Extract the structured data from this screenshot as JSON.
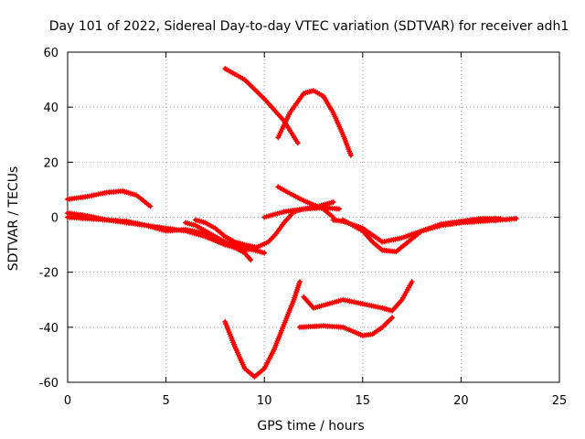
{
  "chart_data": {
    "type": "scatter",
    "title": "Day 101 of 2022, Sidereal Day-to-day VTEC variation (SDTVAR) for receiver adh1",
    "xlabel": "GPS time / hours",
    "ylabel": "SDTVAR / TECUs",
    "xlim": [
      0,
      25
    ],
    "ylim": [
      -60,
      60
    ],
    "x_ticks": [
      "0",
      "5",
      "10",
      "15",
      "20",
      "25"
    ],
    "y_ticks": [
      "-60",
      "-40",
      "-20",
      "0",
      "20",
      "40",
      "60"
    ],
    "grid": true,
    "series_color": "#ff0000",
    "series": [
      {
        "name": "trace-1",
        "points": [
          [
            0,
            6.5
          ],
          [
            1,
            7.5
          ],
          [
            2,
            9
          ],
          [
            2.8,
            9.5
          ],
          [
            3.5,
            8
          ],
          [
            4.2,
            4
          ]
        ]
      },
      {
        "name": "trace-2",
        "points": [
          [
            0,
            1.5
          ],
          [
            1,
            0.5
          ],
          [
            2,
            -1
          ],
          [
            3,
            -2
          ],
          [
            4,
            -3
          ],
          [
            5,
            -5
          ],
          [
            6,
            -4.5
          ],
          [
            7,
            -6
          ],
          [
            8,
            -9
          ],
          [
            9,
            -11
          ],
          [
            10,
            -13
          ]
        ]
      },
      {
        "name": "trace-3",
        "points": [
          [
            0,
            0
          ],
          [
            1,
            -0.5
          ],
          [
            2,
            -1
          ],
          [
            3,
            -1.5
          ],
          [
            4,
            -3
          ],
          [
            5,
            -4
          ],
          [
            6,
            -5
          ],
          [
            7,
            -7
          ],
          [
            8,
            -10
          ],
          [
            9,
            -12
          ],
          [
            9.6,
            -11
          ]
        ]
      },
      {
        "name": "trace-4",
        "points": [
          [
            6,
            -2
          ],
          [
            6.5,
            -3
          ],
          [
            7,
            -5
          ],
          [
            7.5,
            -7
          ],
          [
            8,
            -9
          ],
          [
            8.5,
            -11
          ],
          [
            9,
            -13
          ],
          [
            9.3,
            -15.5
          ]
        ]
      },
      {
        "name": "trace-5",
        "points": [
          [
            6.5,
            -1
          ],
          [
            7,
            -2
          ],
          [
            7.5,
            -4
          ],
          [
            8,
            -7
          ],
          [
            8.5,
            -9
          ],
          [
            9,
            -10
          ],
          [
            9.6,
            -11
          ],
          [
            10.2,
            -9
          ],
          [
            10.6,
            -6
          ],
          [
            11,
            -2
          ],
          [
            11.5,
            2
          ],
          [
            12,
            3
          ],
          [
            12.5,
            3.5
          ],
          [
            13,
            4.5
          ],
          [
            13.5,
            5.5
          ]
        ]
      },
      {
        "name": "trace-6",
        "points": [
          [
            10,
            0
          ],
          [
            11,
            2
          ],
          [
            12,
            3
          ],
          [
            13,
            3.5
          ],
          [
            13.8,
            3
          ]
        ]
      },
      {
        "name": "trace-7",
        "points": [
          [
            10.7,
            11
          ],
          [
            11.2,
            9
          ],
          [
            12,
            6
          ],
          [
            13,
            3
          ],
          [
            13.5,
            0
          ]
        ]
      },
      {
        "name": "trace-8",
        "points": [
          [
            13.5,
            -1
          ],
          [
            14,
            -1.5
          ],
          [
            15,
            -4
          ],
          [
            16,
            -9
          ],
          [
            17,
            -7.5
          ],
          [
            18,
            -5
          ],
          [
            19,
            -3
          ],
          [
            20,
            -2
          ],
          [
            21,
            -1.5
          ],
          [
            22,
            -1
          ],
          [
            22.8,
            -0.5
          ]
        ]
      },
      {
        "name": "trace-9",
        "points": [
          [
            14,
            -1
          ],
          [
            15,
            -5
          ],
          [
            15.5,
            -9
          ],
          [
            16,
            -12
          ],
          [
            16.7,
            -12.5
          ],
          [
            17.3,
            -9
          ],
          [
            18,
            -5
          ],
          [
            19,
            -2.5
          ],
          [
            20,
            -1.5
          ],
          [
            21,
            -0.5
          ],
          [
            22,
            -0.5
          ]
        ]
      },
      {
        "name": "trace-10",
        "points": [
          [
            8,
            54
          ],
          [
            9,
            50
          ],
          [
            10,
            43
          ],
          [
            11,
            35
          ],
          [
            11.7,
            27
          ]
        ]
      },
      {
        "name": "trace-11",
        "points": [
          [
            10.7,
            29
          ],
          [
            11.3,
            38
          ],
          [
            12,
            45
          ],
          [
            12.5,
            46
          ],
          [
            13,
            44
          ],
          [
            13.5,
            38
          ],
          [
            14,
            30
          ],
          [
            14.4,
            22.5
          ]
        ]
      },
      {
        "name": "trace-12",
        "points": [
          [
            8,
            -38
          ],
          [
            8.5,
            -47
          ],
          [
            9,
            -55
          ],
          [
            9.5,
            -58
          ],
          [
            10,
            -55
          ],
          [
            10.5,
            -48
          ],
          [
            11,
            -39
          ],
          [
            11.5,
            -30
          ],
          [
            11.8,
            -23.5
          ]
        ]
      },
      {
        "name": "trace-13",
        "points": [
          [
            12,
            -29
          ],
          [
            12.5,
            -33
          ],
          [
            13,
            -32
          ],
          [
            14,
            -30
          ],
          [
            15,
            -31.5
          ],
          [
            16,
            -33
          ],
          [
            16.5,
            -34
          ],
          [
            17,
            -30
          ],
          [
            17.5,
            -23.5
          ]
        ]
      },
      {
        "name": "trace-14",
        "points": [
          [
            11.8,
            -40
          ],
          [
            13,
            -39.5
          ],
          [
            14,
            -40
          ],
          [
            15,
            -43
          ],
          [
            15.5,
            -42.5
          ],
          [
            16,
            -40
          ],
          [
            16.5,
            -36.5
          ]
        ]
      }
    ]
  }
}
